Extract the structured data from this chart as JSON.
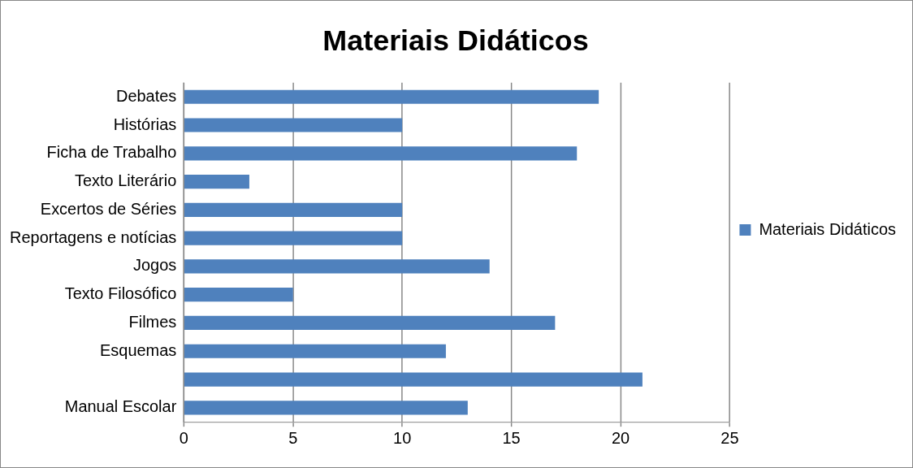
{
  "chart_data": {
    "type": "bar",
    "orientation": "horizontal",
    "title": "Materiais Didáticos",
    "categories": [
      "Debates",
      "Histórias",
      "Ficha de Trabalho",
      "Texto Literário",
      "Excertos de Séries",
      "Reportagens e notícias",
      "Jogos",
      "Texto Filosófico",
      "Filmes",
      "Esquemas",
      null,
      "Manual Escolar"
    ],
    "series": [
      {
        "name": "Materiais Didáticos",
        "color": "#4f81bd",
        "values": [
          19,
          10,
          18,
          3,
          10,
          10,
          14,
          5,
          17,
          12,
          21,
          13
        ]
      }
    ],
    "xlim": [
      0,
      25
    ],
    "xticks": [
      0,
      5,
      10,
      15,
      20,
      25
    ],
    "grid": "x",
    "legend": "right"
  }
}
